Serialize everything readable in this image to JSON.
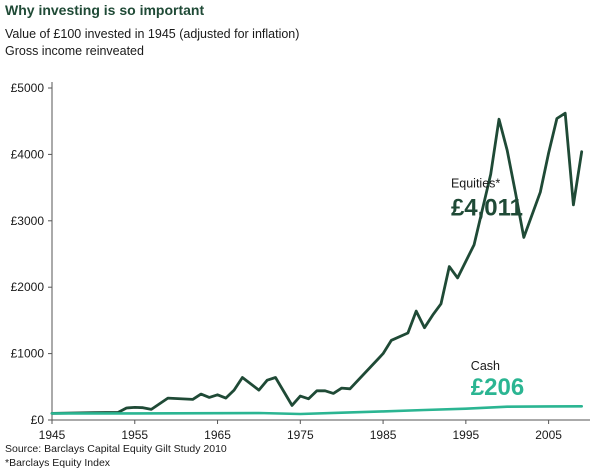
{
  "title": "Why investing is so important",
  "subtitle_lines": [
    "Value of £100 invested in 1945 (adjusted for inflation)",
    "Gross income reinveated"
  ],
  "footnotes": [
    "Source: Barclays Capital Equity Gilt Study 2010",
    "*Barclays Equity Index"
  ],
  "colors": {
    "equities": "#1f4a36",
    "cash": "#2bb592",
    "axis": "#555555",
    "title": "#1f4a36"
  },
  "chart_data": {
    "type": "line",
    "title": "Why investing is so important",
    "xlim": [
      1945,
      2010
    ],
    "ylim": [
      0,
      5000
    ],
    "x_ticks": [
      1945,
      1955,
      1965,
      1975,
      1985,
      1995,
      2005
    ],
    "y_ticks": [
      {
        "value": 0,
        "label": "£0"
      },
      {
        "value": 1000,
        "label": "£1000"
      },
      {
        "value": 2000,
        "label": "£2000"
      },
      {
        "value": 3000,
        "label": "£3000"
      },
      {
        "value": 4000,
        "label": "£4000"
      },
      {
        "value": 5000,
        "label": "£5000"
      }
    ],
    "grid": false,
    "series": [
      {
        "name": "Equities*",
        "end_label": "£4,011",
        "color": "#1f4a36",
        "points": [
          [
            1945,
            100
          ],
          [
            1950,
            110
          ],
          [
            1953,
            115
          ],
          [
            1954,
            180
          ],
          [
            1955,
            190
          ],
          [
            1956,
            185
          ],
          [
            1957,
            160
          ],
          [
            1959,
            330
          ],
          [
            1962,
            310
          ],
          [
            1963,
            390
          ],
          [
            1964,
            340
          ],
          [
            1965,
            380
          ],
          [
            1966,
            330
          ],
          [
            1967,
            450
          ],
          [
            1968,
            640
          ],
          [
            1970,
            450
          ],
          [
            1971,
            600
          ],
          [
            1972,
            640
          ],
          [
            1974,
            220
          ],
          [
            1975,
            360
          ],
          [
            1976,
            320
          ],
          [
            1977,
            440
          ],
          [
            1978,
            440
          ],
          [
            1979,
            400
          ],
          [
            1980,
            480
          ],
          [
            1981,
            470
          ],
          [
            1985,
            1000
          ],
          [
            1986,
            1200
          ],
          [
            1988,
            1310
          ],
          [
            1989,
            1640
          ],
          [
            1990,
            1390
          ],
          [
            1991,
            1580
          ],
          [
            1992,
            1750
          ],
          [
            1993,
            2310
          ],
          [
            1994,
            2140
          ],
          [
            1996,
            2640
          ],
          [
            1998,
            3700
          ],
          [
            1999,
            4530
          ],
          [
            2000,
            4060
          ],
          [
            2001,
            3420
          ],
          [
            2002,
            2750
          ],
          [
            2004,
            3430
          ],
          [
            2005,
            4020
          ],
          [
            2006,
            4540
          ],
          [
            2007,
            4620
          ],
          [
            2008,
            3240
          ],
          [
            2009,
            4040
          ]
        ]
      },
      {
        "name": "Cash",
        "end_label": "£206",
        "color": "#2bb592",
        "points": [
          [
            1945,
            100
          ],
          [
            1955,
            100
          ],
          [
            1965,
            103
          ],
          [
            1970,
            105
          ],
          [
            1975,
            90
          ],
          [
            1980,
            110
          ],
          [
            1985,
            130
          ],
          [
            1990,
            150
          ],
          [
            1995,
            170
          ],
          [
            2000,
            200
          ],
          [
            2005,
            205
          ],
          [
            2009,
            206
          ]
        ]
      }
    ]
  }
}
